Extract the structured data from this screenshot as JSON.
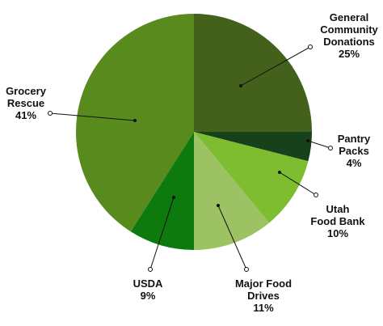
{
  "chart_data": {
    "type": "pie",
    "title": "",
    "start": "top",
    "direction": "clockwise",
    "slices": [
      {
        "label": [
          "General",
          "Community",
          "Donations"
        ],
        "value_label": "25%",
        "value": 25,
        "color": "#43611a"
      },
      {
        "label": [
          "Pantry",
          "Packs"
        ],
        "value_label": "4%",
        "value": 4,
        "color": "#17411a"
      },
      {
        "label": [
          "Utah",
          "Food Bank"
        ],
        "value_label": "10%",
        "value": 10,
        "color": "#7dbd2f"
      },
      {
        "label": [
          "Major Food",
          "Drives"
        ],
        "value_label": "11%",
        "value": 11,
        "color": "#9dc264"
      },
      {
        "label": [
          "USDA"
        ],
        "value_label": "9%",
        "value": 9,
        "color": "#0c7a0c"
      },
      {
        "label": [
          "Grocery",
          "Rescue"
        ],
        "value_label": "41%",
        "value": 41,
        "color": "#588a1e"
      }
    ]
  }
}
